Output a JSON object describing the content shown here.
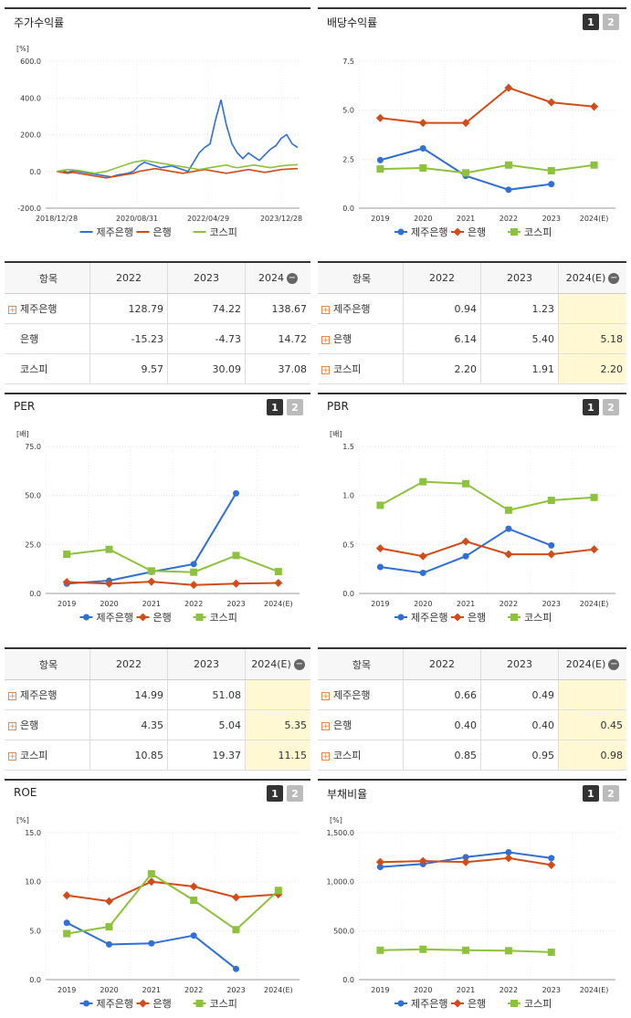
{
  "colors": {
    "jeju": "#2f6fd6",
    "bank": "#d24c1a",
    "kospi": "#8dc23c",
    "highlight": "#fff8d2"
  },
  "legend": [
    "제주은행",
    "은행",
    "코스피"
  ],
  "panels": {
    "stock": {
      "title": "주가수익률"
    },
    "div": {
      "title": "배당수익률",
      "btn1": "1",
      "btn2": "2"
    },
    "per": {
      "title": "PER",
      "btn1": "1",
      "btn2": "2"
    },
    "pbr": {
      "title": "PBR",
      "btn1": "1",
      "btn2": "2"
    },
    "roe": {
      "title": "ROE",
      "btn1": "1",
      "btn2": "2"
    },
    "debt": {
      "title": "부채비율",
      "btn1": "1",
      "btn2": "2"
    }
  },
  "chart_data": [
    {
      "id": "stock",
      "type": "line",
      "title": "주가수익률",
      "ylabel": "[%]",
      "ylim": [
        -200,
        600
      ],
      "yticks": [
        "600.0",
        "400.0",
        "200.0",
        "0.0",
        "-200.0"
      ],
      "xticks": [
        "2018/12/28",
        "2020/08/31",
        "2022/04/29",
        "2023/12/28"
      ],
      "series": [
        {
          "name": "제주은행",
          "values": [
            0,
            5,
            -5,
            3,
            0,
            -5,
            -10,
            -15,
            -20,
            -25,
            -30,
            -20,
            -15,
            -10,
            0,
            30,
            50,
            40,
            30,
            20,
            25,
            30,
            20,
            10,
            0,
            50,
            100,
            130,
            150,
            280,
            390,
            250,
            150,
            100,
            70,
            100,
            80,
            60,
            90,
            120,
            140,
            180,
            200,
            150,
            130
          ]
        },
        {
          "name": "은행",
          "values": [
            0,
            -5,
            -10,
            -5,
            -10,
            -15,
            -20,
            -25,
            -30,
            -35,
            -30,
            -25,
            -20,
            -15,
            -10,
            0,
            5,
            10,
            15,
            10,
            5,
            0,
            -5,
            -10,
            -5,
            0,
            5,
            10,
            5,
            0,
            -5,
            -10,
            -5,
            0,
            5,
            10,
            5,
            0,
            -5,
            0,
            5,
            10,
            12,
            14,
            15
          ]
        },
        {
          "name": "코스피",
          "values": [
            0,
            5,
            10,
            8,
            5,
            0,
            -5,
            -10,
            -5,
            0,
            10,
            20,
            30,
            40,
            50,
            55,
            60,
            55,
            50,
            45,
            40,
            35,
            30,
            25,
            20,
            15,
            10,
            15,
            20,
            25,
            30,
            35,
            25,
            20,
            25,
            30,
            35,
            30,
            25,
            20,
            25,
            30,
            33,
            35,
            37
          ]
        }
      ]
    },
    {
      "id": "div",
      "type": "line",
      "title": "배당수익률",
      "ylim": [
        0,
        7.5
      ],
      "yticks": [
        "7.5",
        "5.0",
        "2.5",
        "0.0"
      ],
      "categories": [
        "2019",
        "2020",
        "2021",
        "2022",
        "2023",
        "2024(E)"
      ],
      "series": [
        {
          "name": "제주은행",
          "values": [
            2.45,
            3.05,
            1.65,
            0.94,
            1.23,
            null
          ]
        },
        {
          "name": "은행",
          "values": [
            4.6,
            4.35,
            4.35,
            6.14,
            5.4,
            5.18
          ]
        },
        {
          "name": "코스피",
          "values": [
            2.0,
            2.05,
            1.8,
            2.2,
            1.91,
            2.2
          ]
        }
      ]
    },
    {
      "id": "per",
      "type": "line",
      "title": "PER",
      "ylabel": "[배]",
      "ylim": [
        0,
        75
      ],
      "yticks": [
        "75.0",
        "50.0",
        "25.0",
        "0.0"
      ],
      "categories": [
        "2019",
        "2020",
        "2021",
        "2022",
        "2023",
        "2024(E)"
      ],
      "series": [
        {
          "name": "제주은행",
          "values": [
            5.0,
            6.5,
            11.0,
            14.99,
            51.08,
            null
          ]
        },
        {
          "name": "은행",
          "values": [
            5.8,
            5.0,
            6.0,
            4.35,
            5.04,
            5.35
          ]
        },
        {
          "name": "코스피",
          "values": [
            20.0,
            22.5,
            11.5,
            10.85,
            19.37,
            11.15
          ]
        }
      ]
    },
    {
      "id": "pbr",
      "type": "line",
      "title": "PBR",
      "ylabel": "[배]",
      "ylim": [
        0,
        1.5
      ],
      "yticks": [
        "1.5",
        "1.0",
        "0.5",
        "0.0"
      ],
      "categories": [
        "2019",
        "2020",
        "2021",
        "2022",
        "2023",
        "2024(E)"
      ],
      "series": [
        {
          "name": "제주은행",
          "values": [
            0.27,
            0.21,
            0.38,
            0.66,
            0.49,
            null
          ]
        },
        {
          "name": "은행",
          "values": [
            0.46,
            0.38,
            0.53,
            0.4,
            0.4,
            0.45
          ]
        },
        {
          "name": "코스피",
          "values": [
            0.9,
            1.14,
            1.12,
            0.85,
            0.95,
            0.98
          ]
        }
      ]
    },
    {
      "id": "roe",
      "type": "line",
      "title": "ROE",
      "ylabel": "[%]",
      "ylim": [
        0,
        15
      ],
      "yticks": [
        "15.0",
        "10.0",
        "5.0",
        "0.0"
      ],
      "categories": [
        "2019",
        "2020",
        "2021",
        "2022",
        "2023",
        "2024(E)"
      ],
      "series": [
        {
          "name": "제주은행",
          "values": [
            5.8,
            3.6,
            3.7,
            4.5,
            1.1,
            null
          ]
        },
        {
          "name": "은행",
          "values": [
            8.6,
            8.0,
            10.0,
            9.5,
            8.4,
            8.7
          ]
        },
        {
          "name": "코스피",
          "values": [
            4.7,
            5.4,
            10.8,
            8.1,
            5.1,
            9.1
          ]
        }
      ]
    },
    {
      "id": "debt",
      "type": "line",
      "title": "부채비율",
      "ylabel": "[%]",
      "ylim": [
        0,
        1500
      ],
      "yticks": [
        "1,500.0",
        "1,000.0",
        "500.0",
        "0.0"
      ],
      "categories": [
        "2019",
        "2020",
        "2021",
        "2022",
        "2023",
        "2024(E)"
      ],
      "series": [
        {
          "name": "제주은행",
          "values": [
            1150,
            1180,
            1250,
            1300,
            1240,
            null
          ]
        },
        {
          "name": "은행",
          "values": [
            1200,
            1210,
            1200,
            1240,
            1170,
            null
          ]
        },
        {
          "name": "코스피",
          "values": [
            300,
            310,
            300,
            295,
            280,
            null
          ]
        }
      ]
    }
  ],
  "tables": {
    "stock": {
      "headers": [
        "항목",
        "2022",
        "2023",
        "2024"
      ],
      "rows": [
        {
          "label": "제주은행",
          "plus": true,
          "values": [
            "128.79",
            "74.22",
            "138.67"
          ]
        },
        {
          "label": "은행",
          "plus": false,
          "values": [
            "-15.23",
            "-4.73",
            "14.72"
          ]
        },
        {
          "label": "코스피",
          "plus": false,
          "values": [
            "9.57",
            "30.09",
            "37.08"
          ]
        }
      ]
    },
    "div": {
      "headers": [
        "항목",
        "2022",
        "2023",
        "2024(E)"
      ],
      "rows": [
        {
          "label": "제주은행",
          "plus": true,
          "values": [
            "0.94",
            "1.23",
            ""
          ]
        },
        {
          "label": "은행",
          "plus": true,
          "values": [
            "6.14",
            "5.40",
            "5.18"
          ]
        },
        {
          "label": "코스피",
          "plus": true,
          "values": [
            "2.20",
            "1.91",
            "2.20"
          ]
        }
      ]
    },
    "per": {
      "headers": [
        "항목",
        "2022",
        "2023",
        "2024(E)"
      ],
      "rows": [
        {
          "label": "제주은행",
          "plus": true,
          "values": [
            "14.99",
            "51.08",
            ""
          ]
        },
        {
          "label": "은행",
          "plus": true,
          "values": [
            "4.35",
            "5.04",
            "5.35"
          ]
        },
        {
          "label": "코스피",
          "plus": true,
          "values": [
            "10.85",
            "19.37",
            "11.15"
          ]
        }
      ]
    },
    "pbr": {
      "headers": [
        "항목",
        "2022",
        "2023",
        "2024(E)"
      ],
      "rows": [
        {
          "label": "제주은행",
          "plus": true,
          "values": [
            "0.66",
            "0.49",
            ""
          ]
        },
        {
          "label": "은행",
          "plus": true,
          "values": [
            "0.40",
            "0.40",
            "0.45"
          ]
        },
        {
          "label": "코스피",
          "plus": true,
          "values": [
            "0.85",
            "0.95",
            "0.98"
          ]
        }
      ]
    }
  }
}
